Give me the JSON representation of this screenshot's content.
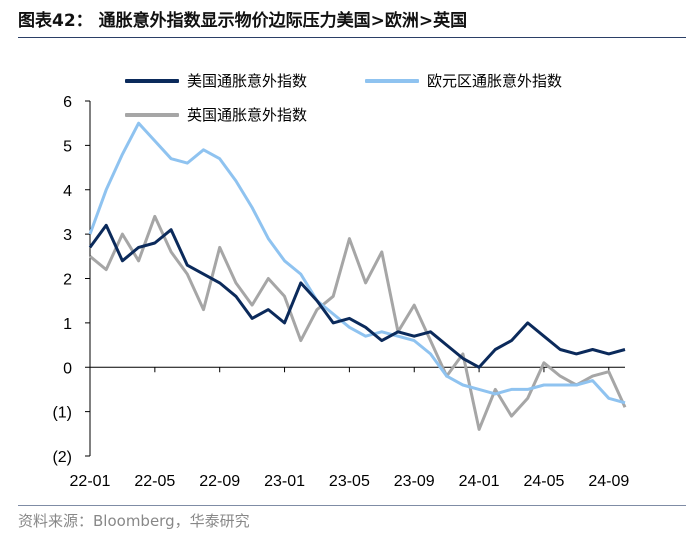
{
  "header": {
    "title": "图表42：  通胀意外指数显示物价边际压力美国>欧洲>英国"
  },
  "footer": {
    "source": "资料来源：Bloomberg，华泰研究"
  },
  "colors": {
    "us": "#0b2a5b",
    "euro": "#8fc3f0",
    "uk": "#a6a6a6",
    "rule": "#2b3f66"
  },
  "chart_data": {
    "type": "line",
    "title": "",
    "xlabel": "",
    "ylabel": "",
    "ylim": [
      -2,
      6
    ],
    "y_ticks": [
      "6",
      "5",
      "4",
      "3",
      "2",
      "1",
      "0",
      "(1)",
      "(2)"
    ],
    "y_tick_values": [
      6,
      5,
      4,
      3,
      2,
      1,
      0,
      -1,
      -2
    ],
    "x_tick_labels": [
      "22-01",
      "22-05",
      "22-09",
      "23-01",
      "23-05",
      "23-09",
      "24-01",
      "24-05",
      "24-09"
    ],
    "x_range_months": [
      "2022-01",
      "2024-10"
    ],
    "legend_position": "top",
    "series": [
      {
        "name": "美国通胀意外指数",
        "color_key": "us",
        "points": [
          [
            "2022-01",
            2.7
          ],
          [
            "2022-02",
            3.2
          ],
          [
            "2022-03",
            2.4
          ],
          [
            "2022-04",
            2.7
          ],
          [
            "2022-05",
            2.8
          ],
          [
            "2022-06",
            3.1
          ],
          [
            "2022-07",
            2.3
          ],
          [
            "2022-08",
            2.1
          ],
          [
            "2022-09",
            1.9
          ],
          [
            "2022-10",
            1.6
          ],
          [
            "2022-11",
            1.1
          ],
          [
            "2022-12",
            1.3
          ],
          [
            "2023-01",
            1.0
          ],
          [
            "2023-02",
            1.9
          ],
          [
            "2023-03",
            1.5
          ],
          [
            "2023-04",
            1.0
          ],
          [
            "2023-05",
            1.1
          ],
          [
            "2023-06",
            0.9
          ],
          [
            "2023-07",
            0.6
          ],
          [
            "2023-08",
            0.8
          ],
          [
            "2023-09",
            0.7
          ],
          [
            "2023-10",
            0.8
          ],
          [
            "2023-11",
            0.5
          ],
          [
            "2023-12",
            0.2
          ],
          [
            "2024-01",
            0.0
          ],
          [
            "2024-02",
            0.4
          ],
          [
            "2024-03",
            0.6
          ],
          [
            "2024-04",
            1.0
          ],
          [
            "2024-05",
            0.7
          ],
          [
            "2024-06",
            0.4
          ],
          [
            "2024-07",
            0.3
          ],
          [
            "2024-08",
            0.4
          ],
          [
            "2024-09",
            0.3
          ],
          [
            "2024-10",
            0.4
          ]
        ]
      },
      {
        "name": "欧元区通胀意外指数",
        "color_key": "euro",
        "points": [
          [
            "2022-01",
            3.0
          ],
          [
            "2022-02",
            4.0
          ],
          [
            "2022-03",
            4.8
          ],
          [
            "2022-04",
            5.5
          ],
          [
            "2022-05",
            5.1
          ],
          [
            "2022-06",
            4.7
          ],
          [
            "2022-07",
            4.6
          ],
          [
            "2022-08",
            4.9
          ],
          [
            "2022-09",
            4.7
          ],
          [
            "2022-10",
            4.2
          ],
          [
            "2022-11",
            3.6
          ],
          [
            "2022-12",
            2.9
          ],
          [
            "2023-01",
            2.4
          ],
          [
            "2023-02",
            2.1
          ],
          [
            "2023-03",
            1.5
          ],
          [
            "2023-04",
            1.2
          ],
          [
            "2023-05",
            0.9
          ],
          [
            "2023-06",
            0.7
          ],
          [
            "2023-07",
            0.8
          ],
          [
            "2023-08",
            0.7
          ],
          [
            "2023-09",
            0.6
          ],
          [
            "2023-10",
            0.3
          ],
          [
            "2023-11",
            -0.2
          ],
          [
            "2023-12",
            -0.4
          ],
          [
            "2024-01",
            -0.5
          ],
          [
            "2024-02",
            -0.6
          ],
          [
            "2024-03",
            -0.5
          ],
          [
            "2024-04",
            -0.5
          ],
          [
            "2024-05",
            -0.4
          ],
          [
            "2024-06",
            -0.4
          ],
          [
            "2024-07",
            -0.4
          ],
          [
            "2024-08",
            -0.3
          ],
          [
            "2024-09",
            -0.7
          ],
          [
            "2024-10",
            -0.8
          ]
        ]
      },
      {
        "name": "英国通胀意外指数",
        "color_key": "uk",
        "points": [
          [
            "2022-01",
            2.5
          ],
          [
            "2022-02",
            2.2
          ],
          [
            "2022-03",
            3.0
          ],
          [
            "2022-04",
            2.4
          ],
          [
            "2022-05",
            3.4
          ],
          [
            "2022-06",
            2.6
          ],
          [
            "2022-07",
            2.1
          ],
          [
            "2022-08",
            1.3
          ],
          [
            "2022-09",
            2.7
          ],
          [
            "2022-10",
            1.9
          ],
          [
            "2022-11",
            1.4
          ],
          [
            "2022-12",
            2.0
          ],
          [
            "2023-01",
            1.6
          ],
          [
            "2023-02",
            0.6
          ],
          [
            "2023-03",
            1.3
          ],
          [
            "2023-04",
            1.6
          ],
          [
            "2023-05",
            2.9
          ],
          [
            "2023-06",
            1.9
          ],
          [
            "2023-07",
            2.6
          ],
          [
            "2023-08",
            0.8
          ],
          [
            "2023-09",
            1.4
          ],
          [
            "2023-10",
            0.6
          ],
          [
            "2023-11",
            -0.2
          ],
          [
            "2023-12",
            0.3
          ],
          [
            "2024-01",
            -1.4
          ],
          [
            "2024-02",
            -0.5
          ],
          [
            "2024-03",
            -1.1
          ],
          [
            "2024-04",
            -0.7
          ],
          [
            "2024-05",
            0.1
          ],
          [
            "2024-06",
            -0.2
          ],
          [
            "2024-07",
            -0.4
          ],
          [
            "2024-08",
            -0.2
          ],
          [
            "2024-09",
            -0.1
          ],
          [
            "2024-10",
            -0.9
          ]
        ]
      }
    ]
  }
}
